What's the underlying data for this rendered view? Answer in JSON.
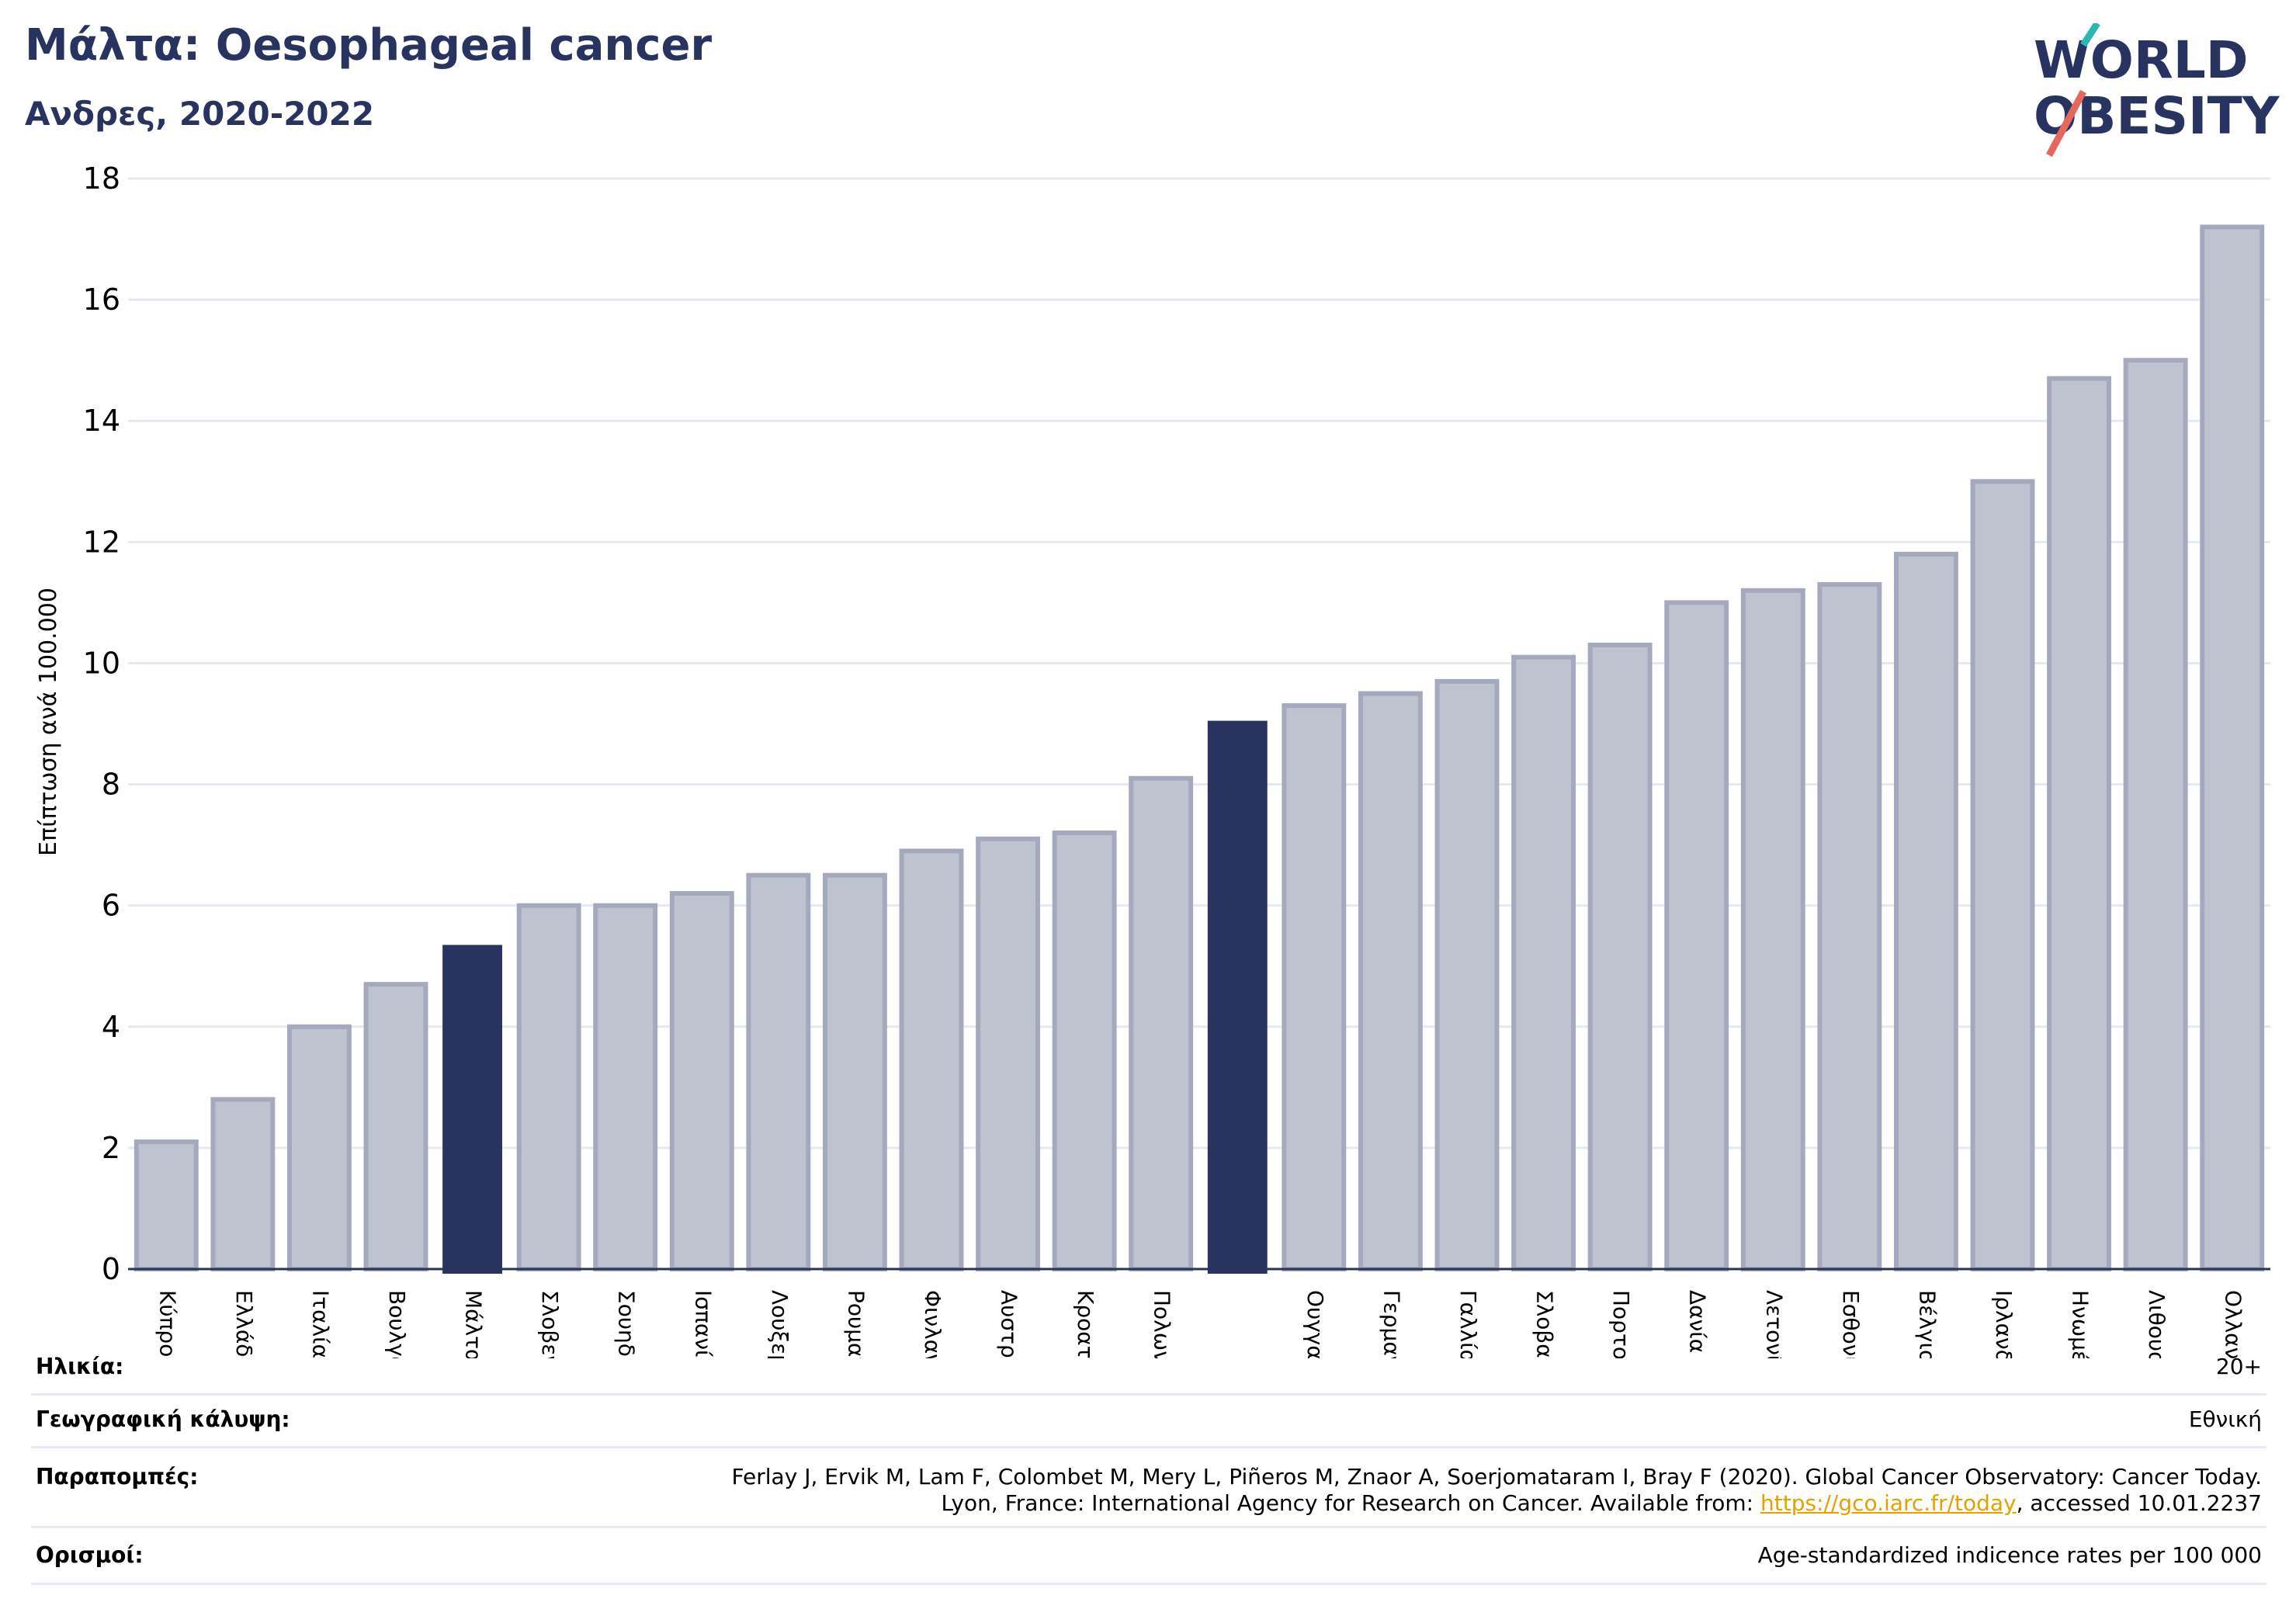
{
  "header": {
    "title": "Μάλτα: Oesophageal cancer",
    "subtitle": "Ανδρες, 2020-2022"
  },
  "logo": {
    "line1": "WORLD",
    "line2": "OBESITY"
  },
  "chart_data": {
    "type": "bar",
    "ylabel": "Επίπτωση ανά 100.000",
    "ylim": [
      0,
      18
    ],
    "yticks": [
      0,
      2,
      4,
      6,
      8,
      10,
      12,
      14,
      16,
      18
    ],
    "grid": true,
    "categories": [
      "Κύπρος",
      "Ελλάδα",
      "Ιταλία",
      "Βουλγαρία",
      "Μάλτα",
      "Σλοβενία",
      "Σουηδία",
      "Ισπανία",
      "Λουξεμβούργο",
      "Ρουμανία",
      "Φινλανδία",
      "Αυστρία",
      "Κροατία",
      "Πολωνία",
      "",
      "Ουγγαρία",
      "Γερμανία",
      "Γαλλία",
      "Σλοβακία",
      "Πορτογαλία",
      "Δανία",
      "Λετονία",
      "Εσθονία",
      "Βέλγιο",
      "Ιρλανδία",
      "Ηνωμένο Βασίλειο",
      "Λιθουανία",
      "Ολλανδία"
    ],
    "values": [
      2.1,
      2.8,
      4.0,
      4.7,
      5.35,
      6.0,
      6.0,
      6.2,
      6.5,
      6.5,
      6.9,
      7.1,
      7.2,
      8.1,
      9.05,
      9.3,
      9.5,
      9.7,
      10.1,
      10.3,
      11.0,
      11.2,
      11.3,
      11.8,
      13.0,
      14.7,
      15.0,
      17.2
    ],
    "highlighted": [
      4,
      14
    ],
    "colors": {
      "bar": "#bfc2cf",
      "bar_edge": "#a4a9bd",
      "highlight": "#283360",
      "axis": "#283360",
      "grid": "#e6e9f1"
    }
  },
  "footer": {
    "age": {
      "label": "Ηλικία:",
      "value": "20+"
    },
    "coverage": {
      "label": "Γεωγραφική κάλυψη:",
      "value": "Εθνική"
    },
    "references": {
      "label": "Παραπομπές:",
      "line1": "Ferlay J, Ervik M, Lam F, Colombet M, Mery L, Piñeros M, Znaor A, Soerjomataram I, Bray F (2020). Global Cancer Observatory: Cancer Today.",
      "line2_prefix": "Lyon, France: International Agency for Research on Cancer. Available from: ",
      "link": "https://gco.iarc.fr/today",
      "line2_suffix": ", accessed 10.01.2237"
    },
    "definitions": {
      "label": "Ορισμοί:",
      "value": "Age-standardized indicence rates per 100 000"
    }
  }
}
